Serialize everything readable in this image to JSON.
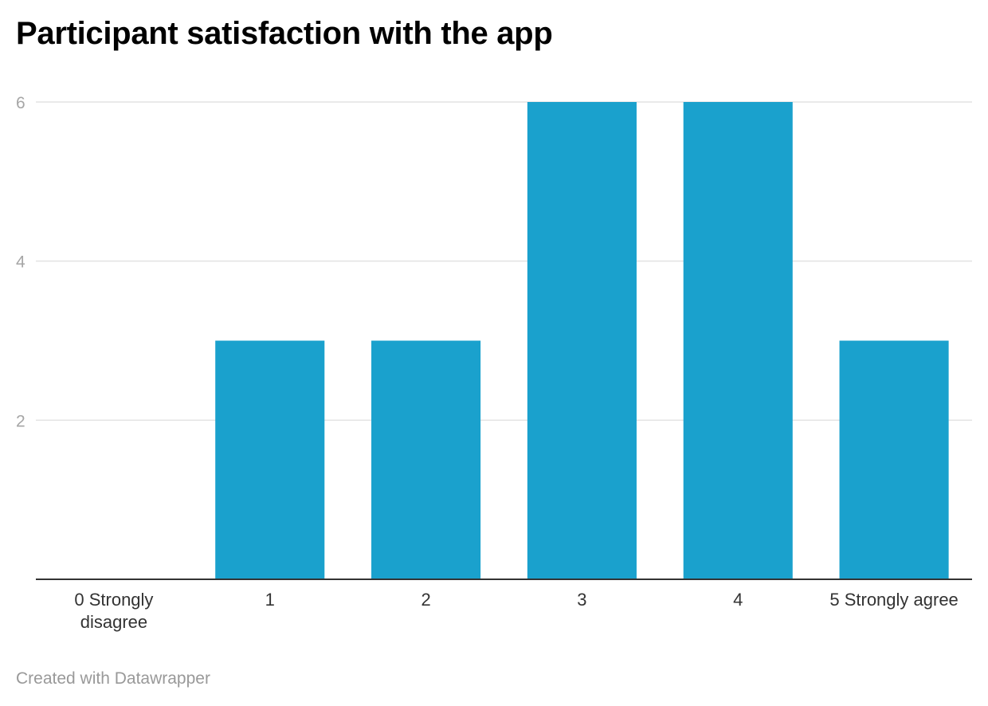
{
  "chart_data": {
    "type": "bar",
    "title": "Participant satisfaction with the app",
    "xlabel": "",
    "ylabel": "",
    "categories": [
      [
        "0 Strongly",
        "disagree"
      ],
      [
        "1"
      ],
      [
        "2"
      ],
      [
        "3"
      ],
      [
        "4"
      ],
      [
        "5 Strongly agree"
      ]
    ],
    "values": [
      0,
      3,
      3,
      6,
      6,
      3
    ],
    "ylim": [
      0,
      6
    ],
    "yticks": [
      2,
      4,
      6
    ],
    "grid": true,
    "legend": "none",
    "colors": {
      "bar": "#1aa1cd",
      "grid": "#e3e3e3",
      "baseline": "#333333"
    }
  },
  "footer": {
    "credit": "Created with Datawrapper"
  }
}
